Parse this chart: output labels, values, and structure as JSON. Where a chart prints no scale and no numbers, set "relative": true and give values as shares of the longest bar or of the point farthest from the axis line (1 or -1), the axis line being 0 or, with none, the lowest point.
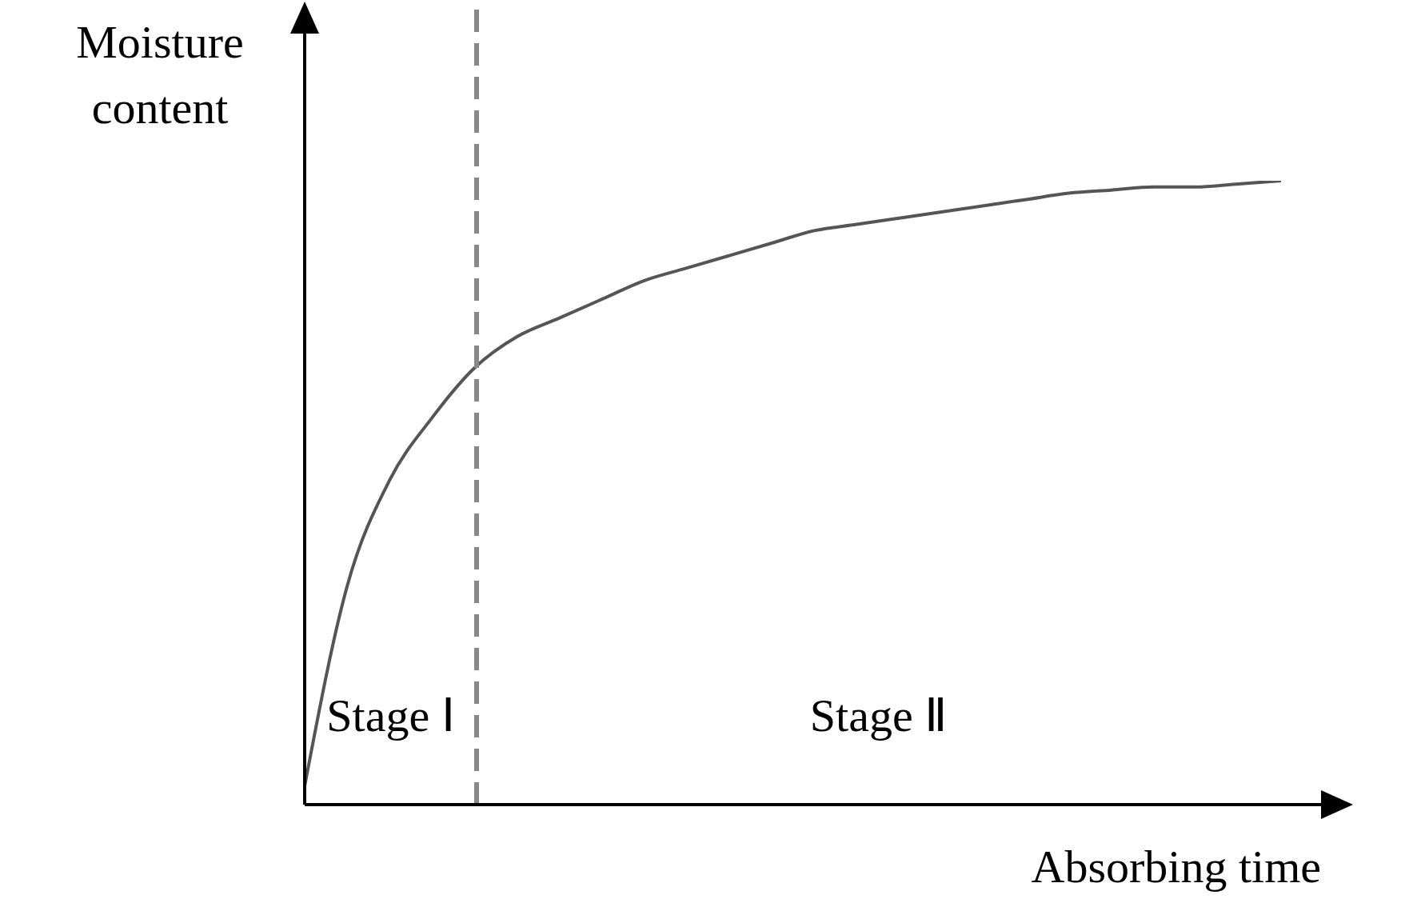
{
  "chart_data": {
    "type": "line",
    "relative": true,
    "xlabel": "Absorbing time",
    "ylabel": "Moisture content",
    "categories": [
      null,
      null,
      null,
      null,
      null,
      null,
      null,
      null,
      null,
      null,
      null,
      null,
      null,
      null,
      null,
      null,
      null,
      null,
      null,
      null,
      null,
      null,
      null,
      null
    ],
    "values": [
      0.03,
      0.35,
      0.52,
      0.62,
      0.7,
      0.75,
      0.78,
      0.81,
      0.84,
      0.86,
      0.88,
      0.9,
      0.92,
      0.93,
      0.94,
      0.95,
      0.96,
      0.97,
      0.98,
      0.985,
      0.99,
      0.99,
      0.995,
      1
    ],
    "color": "#555555",
    "marker": "none",
    "line_style": "solid",
    "grid": false,
    "legend": false,
    "tick_labels": false,
    "annotations": [
      "Stage Ⅰ",
      "Stage Ⅱ"
    ]
  }
}
